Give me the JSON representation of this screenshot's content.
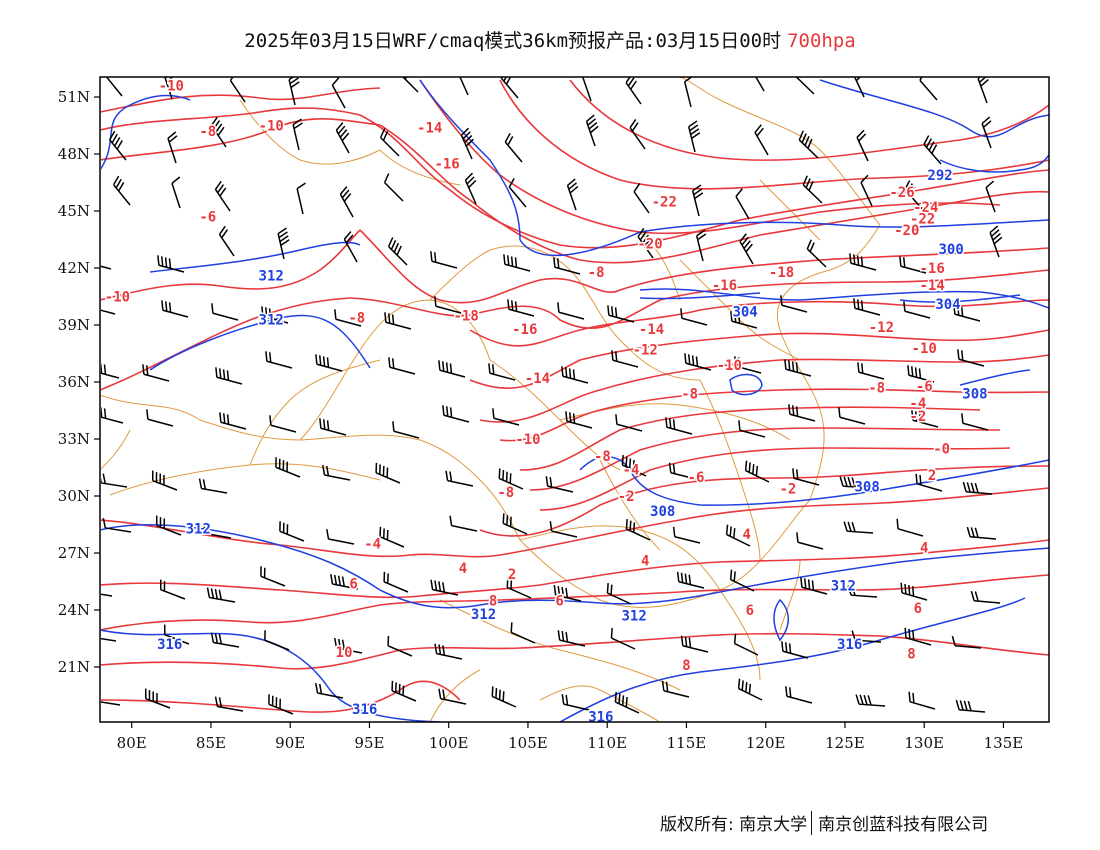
{
  "title": {
    "main": "2025年03月15日WRF/cmaq模式36km预报产品:03月15日00时",
    "level": "700hpa",
    "level_color": "#e8383c"
  },
  "colors": {
    "temperature_isotherm": "#e8383c",
    "geopotential_contour": "#1f3fe0",
    "boundary": "#e09a40",
    "wind_barb": "#000000"
  },
  "map": {
    "lon_labels": [
      "80E",
      "85E",
      "90E",
      "95E",
      "100E",
      "105E",
      "110E",
      "115E",
      "120E",
      "125E",
      "130E",
      "135E"
    ],
    "lat_labels": [
      "51N",
      "48N",
      "45N",
      "42N",
      "39N",
      "36N",
      "33N",
      "30N",
      "27N",
      "24N",
      "21N"
    ],
    "lon_values": [
      80,
      85,
      90,
      95,
      100,
      105,
      110,
      115,
      120,
      125,
      130,
      135
    ],
    "lat_values": [
      51,
      48,
      45,
      42,
      39,
      36,
      33,
      30,
      27,
      24,
      21
    ],
    "lon_range": [
      78,
      138
    ],
    "lat_range": [
      18,
      52
    ],
    "temperature_labels": [
      {
        "text": "-10",
        "lon": 82.5,
        "lat": 51.6
      },
      {
        "text": "-8",
        "lon": 84.8,
        "lat": 49.2
      },
      {
        "text": "-10",
        "lon": 88.8,
        "lat": 49.5
      },
      {
        "text": "-14",
        "lon": 98.8,
        "lat": 49.4
      },
      {
        "text": "-16",
        "lon": 99.9,
        "lat": 47.5
      },
      {
        "text": "-6",
        "lon": 84.8,
        "lat": 44.7
      },
      {
        "text": "-22",
        "lon": 113.6,
        "lat": 45.5
      },
      {
        "text": "-20",
        "lon": 112.7,
        "lat": 43.3
      },
      {
        "text": "-26",
        "lon": 128.6,
        "lat": 46.0
      },
      {
        "text": "-24",
        "lon": 130.1,
        "lat": 45.2
      },
      {
        "text": "-22",
        "lon": 129.9,
        "lat": 44.6
      },
      {
        "text": "-20",
        "lon": 128.9,
        "lat": 44.0
      },
      {
        "text": "-10",
        "lon": 79.1,
        "lat": 40.5
      },
      {
        "text": "-8",
        "lon": 94.2,
        "lat": 39.4
      },
      {
        "text": "-18",
        "lon": 101.1,
        "lat": 39.5
      },
      {
        "text": "-16",
        "lon": 104.8,
        "lat": 38.8
      },
      {
        "text": "-8",
        "lon": 109.3,
        "lat": 41.8
      },
      {
        "text": "-16",
        "lon": 117.4,
        "lat": 41.1
      },
      {
        "text": "-18",
        "lon": 121.0,
        "lat": 41.8
      },
      {
        "text": "-16",
        "lon": 130.5,
        "lat": 42.0
      },
      {
        "text": "-14",
        "lon": 130.5,
        "lat": 41.1
      },
      {
        "text": "-14",
        "lon": 112.8,
        "lat": 38.8
      },
      {
        "text": "-12",
        "lon": 112.4,
        "lat": 37.7
      },
      {
        "text": "-12",
        "lon": 127.3,
        "lat": 38.9
      },
      {
        "text": "-10",
        "lon": 130.0,
        "lat": 37.8
      },
      {
        "text": "-10",
        "lon": 117.7,
        "lat": 36.9
      },
      {
        "text": "-14",
        "lon": 105.6,
        "lat": 36.2
      },
      {
        "text": "-8",
        "lon": 115.2,
        "lat": 35.4
      },
      {
        "text": "-8",
        "lon": 127.0,
        "lat": 35.7
      },
      {
        "text": "-6",
        "lon": 130.0,
        "lat": 35.8
      },
      {
        "text": "-4",
        "lon": 129.6,
        "lat": 34.9
      },
      {
        "text": "-2",
        "lon": 129.6,
        "lat": 34.2
      },
      {
        "text": "-10",
        "lon": 105.0,
        "lat": 33.0
      },
      {
        "text": "-0",
        "lon": 131.1,
        "lat": 32.5
      },
      {
        "text": "-8",
        "lon": 109.7,
        "lat": 32.1
      },
      {
        "text": "-4",
        "lon": 111.5,
        "lat": 31.4
      },
      {
        "text": "-2",
        "lon": 121.4,
        "lat": 30.4
      },
      {
        "text": "2",
        "lon": 130.5,
        "lat": 31.1
      },
      {
        "text": "-2",
        "lon": 111.2,
        "lat": 30.0
      },
      {
        "text": "-8",
        "lon": 103.6,
        "lat": 30.2
      },
      {
        "text": "-6",
        "lon": 115.6,
        "lat": 31.0
      },
      {
        "text": "4",
        "lon": 118.8,
        "lat": 28.0
      },
      {
        "text": "4",
        "lon": 130.0,
        "lat": 27.3
      },
      {
        "text": "-4",
        "lon": 95.2,
        "lat": 27.5
      },
      {
        "text": "4",
        "lon": 112.4,
        "lat": 26.6
      },
      {
        "text": "4",
        "lon": 100.9,
        "lat": 26.2
      },
      {
        "text": "2",
        "lon": 104.0,
        "lat": 25.9
      },
      {
        "text": "6",
        "lon": 94.0,
        "lat": 25.4
      },
      {
        "text": "8",
        "lon": 102.8,
        "lat": 24.5
      },
      {
        "text": "6",
        "lon": 107.0,
        "lat": 24.5
      },
      {
        "text": "6",
        "lon": 119.0,
        "lat": 24.0
      },
      {
        "text": "6",
        "lon": 129.6,
        "lat": 24.1
      },
      {
        "text": "10",
        "lon": 93.4,
        "lat": 21.8
      },
      {
        "text": "8",
        "lon": 129.2,
        "lat": 21.7
      },
      {
        "text": "8",
        "lon": 115.0,
        "lat": 21.1
      }
    ],
    "height_labels": [
      {
        "text": "292",
        "lon": 131.0,
        "lat": 46.9
      },
      {
        "text": "300",
        "lon": 131.7,
        "lat": 43.0
      },
      {
        "text": "312",
        "lon": 88.8,
        "lat": 41.6
      },
      {
        "text": "304",
        "lon": 118.7,
        "lat": 39.7
      },
      {
        "text": "304",
        "lon": 131.5,
        "lat": 40.1
      },
      {
        "text": "312",
        "lon": 88.8,
        "lat": 39.3
      },
      {
        "text": "308",
        "lon": 133.2,
        "lat": 35.4
      },
      {
        "text": "308",
        "lon": 126.4,
        "lat": 30.5
      },
      {
        "text": "308",
        "lon": 113.5,
        "lat": 29.2
      },
      {
        "text": "312",
        "lon": 84.2,
        "lat": 28.3
      },
      {
        "text": "312",
        "lon": 124.9,
        "lat": 25.3
      },
      {
        "text": "312",
        "lon": 102.2,
        "lat": 23.8
      },
      {
        "text": "312",
        "lon": 111.7,
        "lat": 23.7
      },
      {
        "text": "316",
        "lon": 82.4,
        "lat": 22.2
      },
      {
        "text": "316",
        "lon": 125.3,
        "lat": 22.2
      },
      {
        "text": "316",
        "lon": 94.7,
        "lat": 18.8
      },
      {
        "text": "316",
        "lon": 109.6,
        "lat": 18.4
      }
    ]
  },
  "credit": {
    "copyright": "版权所有: 南京大学",
    "company": "南京创蓝科技有限公司"
  }
}
